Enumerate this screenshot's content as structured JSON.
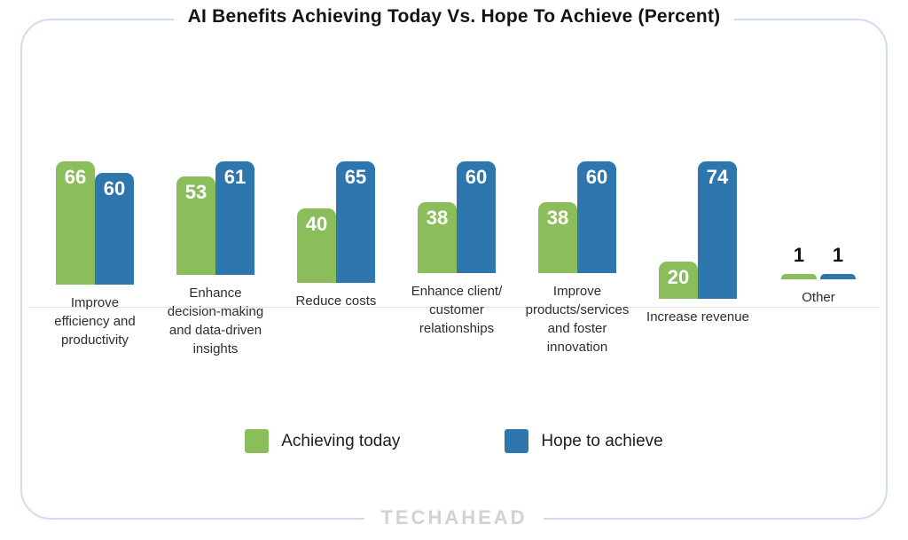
{
  "chart_data": {
    "type": "bar",
    "title": "AI Benefits Achieving Today Vs. Hope To Achieve (Percent)",
    "categories": [
      "Improve\nefficiency and\nproductivity",
      "Enhance\ndecision-making\nand data-driven\ninsights",
      "Reduce costs",
      "Enhance client/\ncustomer\nrelationships",
      "Improve\nproducts/services\nand foster\ninnovation",
      "Increase revenue",
      "Other"
    ],
    "series": [
      {
        "name": "Achieving today",
        "color": "#8cbd5b",
        "values": [
          66,
          53,
          40,
          38,
          38,
          20,
          1
        ]
      },
      {
        "name": "Hope to achieve",
        "color": "#2e76ae",
        "values": [
          60,
          61,
          65,
          60,
          60,
          74,
          1
        ]
      }
    ],
    "ylim": [
      0,
      80
    ],
    "grid": false,
    "legend_position": "bottom",
    "value_labels": true
  },
  "colors": {
    "green": "#8cbd5b",
    "blue": "#2e76ae",
    "card_border": "#cfdcf3",
    "baseline": "#e3e3e3"
  },
  "footer": {
    "logo_text": "TECHAHEAD"
  }
}
